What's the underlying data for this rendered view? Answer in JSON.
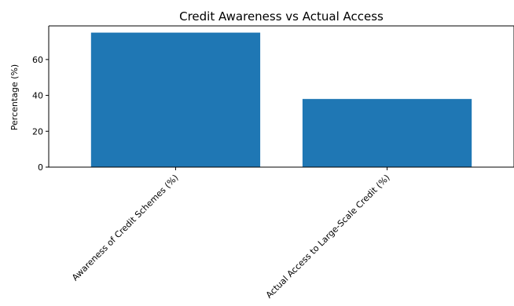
{
  "chart_data": {
    "type": "bar",
    "title": "Credit Awareness vs Actual Access",
    "xlabel": "",
    "ylabel": "Percentage (%)",
    "categories": [
      "Awareness of Credit Schemes (%)",
      "Actual Access to Large-Scale Credit (%)"
    ],
    "values": [
      75,
      38
    ],
    "ylim": [
      0,
      78.75
    ],
    "yticks": [
      0,
      20,
      40,
      60
    ],
    "bar_color": "#1f77b4",
    "grid": false,
    "legend": "none"
  }
}
